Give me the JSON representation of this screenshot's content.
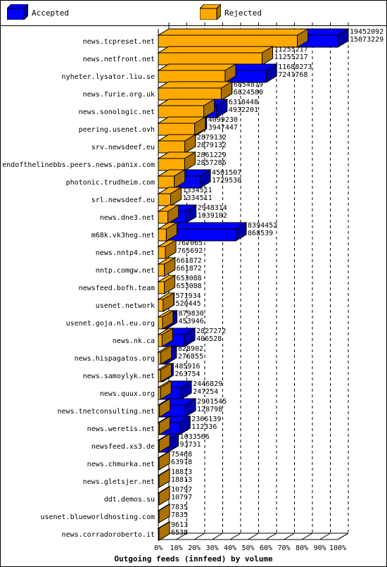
{
  "legend": {
    "accepted_label": "Accepted",
    "rejected_label": "Rejected"
  },
  "colors": {
    "accepted": "#0000ff",
    "rejected": "#ffaa00",
    "frame": "#000000"
  },
  "chart_data": {
    "type": "bar",
    "orientation": "horizontal",
    "style": "3d",
    "title": "",
    "xlabel": "Outgoing feeds (innfeed) by volume",
    "ylabel": "",
    "x_ticks": [
      "0%",
      "10%",
      "20%",
      "30%",
      "40%",
      "50%",
      "60%",
      "70%",
      "80%",
      "90%",
      "100%"
    ],
    "xlim": [
      0,
      100
    ],
    "grid": "vertical dashed",
    "legend_position": "top",
    "categories": [
      "news.tcpreset.net",
      "news.netfront.net",
      "nyheter.lysator.liu.se",
      "news.furie.org.uk",
      "news.sonologic.net",
      "peering.usenet.ovh",
      "srv.newsdeef.eu",
      "endofthelinebbs.peers.news.panix.com",
      "photonic.trudheim.com",
      "srl.newsdeef.eu",
      "news.dne3.net",
      "m68k.vk3heg.net",
      "news.nntp4.net",
      "nntp.comgw.net",
      "newsfeed.bofh.team",
      "usenet.network",
      "usenet.goja.nl.eu.org",
      "news.nk.ca",
      "news.hispagatos.org",
      "news.samoylyk.net",
      "news.quux.org",
      "news.tnetconsulting.net",
      "news.weretis.net",
      "newsfeed.xs3.de",
      "news.chmurka.net",
      "news.gletsjer.net",
      "ddt.demos.su",
      "usenet.blueworldhosting.com",
      "news.corradoroberto.it"
    ],
    "series": [
      {
        "name": "Accepted",
        "values": [
          19452092,
          11255217,
          11688273,
          6854819,
          6318448,
          4099230,
          2879132,
          2861229,
          4501507,
          1334511,
          2948314,
          8394452,
          767065,
          661872,
          653088,
          571934,
          879830,
          2827272,
          828902,
          485916,
          2446829,
          2901545,
          2306139,
          1033566,
          75468,
          18813,
          10797,
          7835,
          9613
        ]
      },
      {
        "name": "Rejected",
        "values": [
          15073229,
          11255217,
          7241768,
          6824580,
          4932201,
          3947447,
          2879132,
          2857286,
          1729530,
          1334511,
          1039102,
          868539,
          765692,
          661872,
          653088,
          520445,
          453946,
          406528,
          276855,
          263754,
          247254,
          128798,
          112336,
          93731,
          63978,
          18813,
          10797,
          7835,
          6538
        ]
      }
    ]
  }
}
